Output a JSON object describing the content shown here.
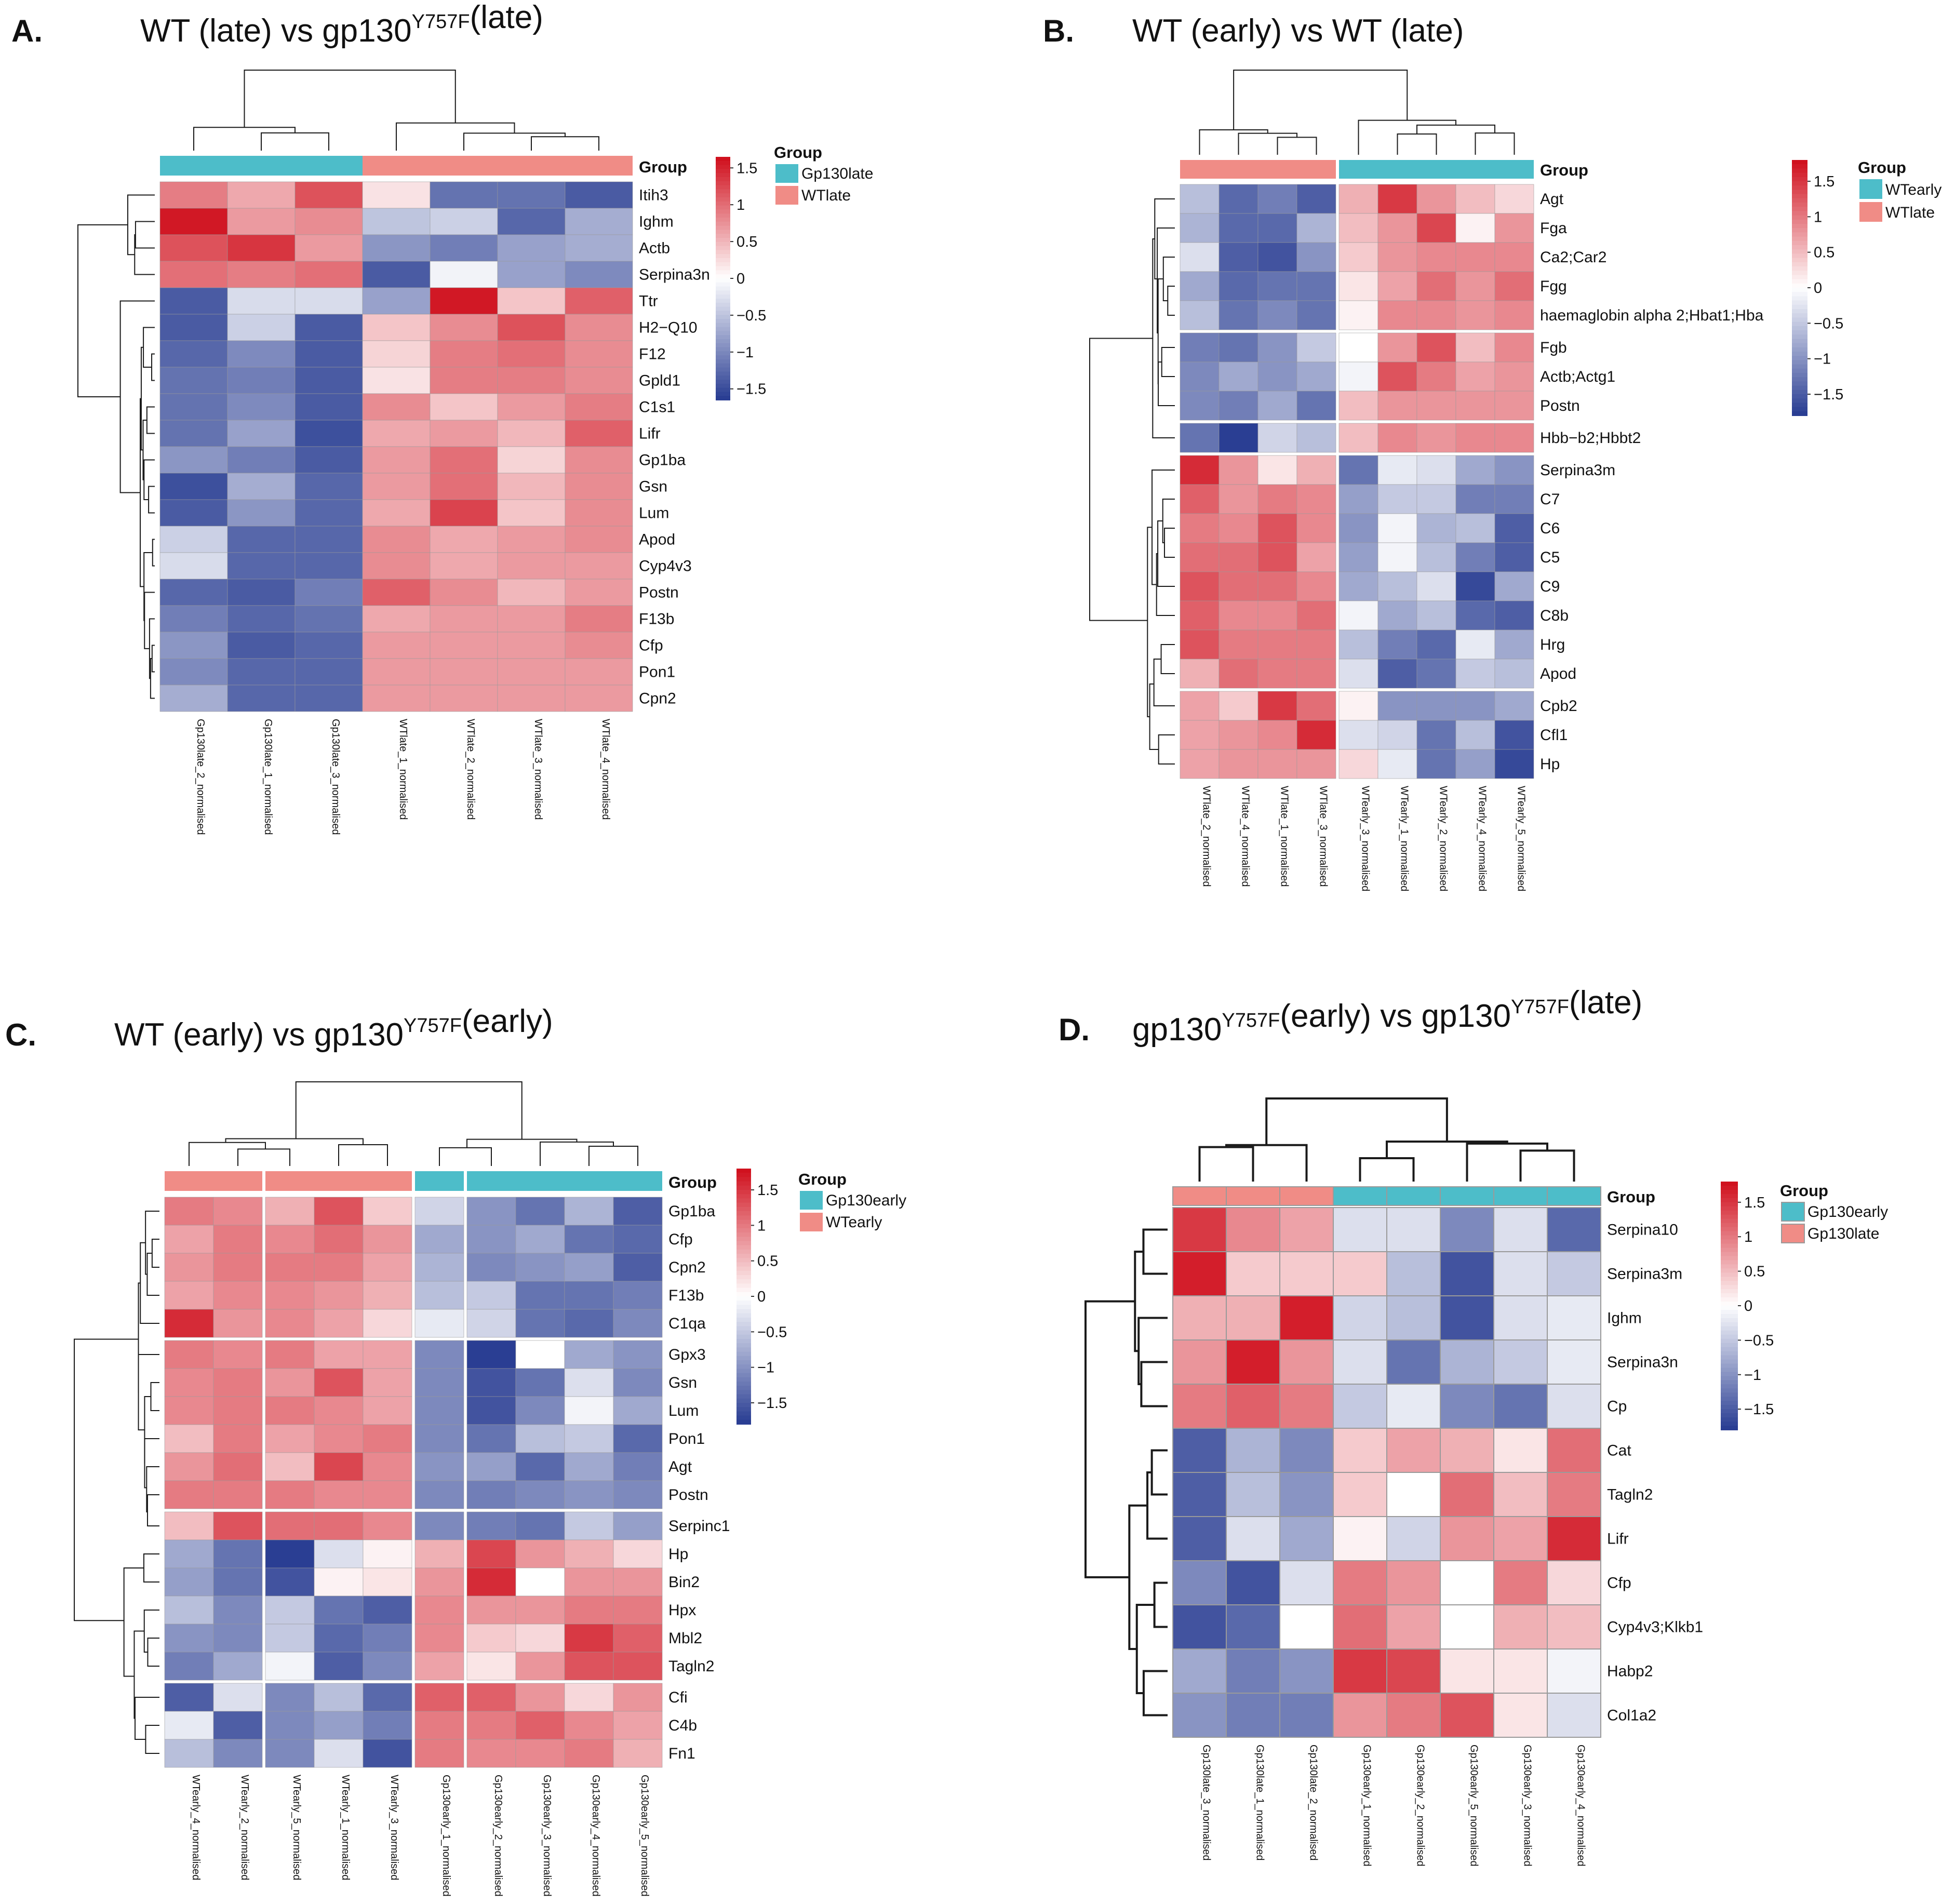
{
  "colors": {
    "gp130": "#4dbdc9",
    "wt": "#f08c86",
    "low": "#2a3e93",
    "mid": "#ffffff",
    "high": "#d0111e",
    "dendrogram": "#1a1a1a",
    "cell_border": "#9a9a9a"
  },
  "chart_data": [
    {
      "type": "heatmap",
      "panel": "A.",
      "title_prefix": "WT (late) vs ",
      "title_gene": "gp130",
      "title_sup": "Y757F",
      "title_suffix": "(late)",
      "annotation_label": "Group",
      "legend_title": "Group",
      "legend_entries": [
        {
          "label": "Gp130late",
          "color_key": "gp130"
        },
        {
          "label": "WTlate",
          "color_key": "wt"
        }
      ],
      "colorbar_ticks": [
        "1.5",
        "1",
        "0.5",
        "0",
        "−0.5",
        "−1",
        "−1.5"
      ],
      "colorbar_range": [
        -1.65,
        1.65
      ],
      "columns": [
        "Gp130late_2_normalised",
        "Gp130late_1_normalised",
        "Gp130late_3_normalised",
        "WTlate_1_normalised",
        "WTlate_2_normalised",
        "WTlate_3_normalised",
        "WTlate_4_normalised"
      ],
      "column_groups": [
        "gp130",
        "gp130",
        "gp130",
        "wt",
        "wt",
        "wt",
        "wt"
      ],
      "rows": [
        "Itih3",
        "Ighm",
        "Actb",
        "Serpina3n",
        "Ttr",
        "H2−Q10",
        "F12",
        "Gpld1",
        "C1s1",
        "Lifr",
        "Gp1ba",
        "Gsn",
        "Lum",
        "Apod",
        "Cyp4v3",
        "Postn",
        "F13b",
        "Cfp",
        "Pon1",
        "Cpn2"
      ],
      "values": [
        [
          0.9,
          0.6,
          1.2,
          0.2,
          -1.2,
          -1.2,
          -1.4
        ],
        [
          1.6,
          0.7,
          0.8,
          -0.5,
          -0.4,
          -1.3,
          -0.7
        ],
        [
          1.2,
          1.4,
          0.7,
          -0.9,
          -1.1,
          -0.8,
          -0.7
        ],
        [
          1.0,
          0.9,
          1.0,
          -1.4,
          -0.1,
          -0.8,
          -1.0
        ],
        [
          -1.4,
          -0.3,
          -0.3,
          -0.8,
          1.6,
          0.4,
          1.1
        ],
        [
          -1.4,
          -0.4,
          -1.4,
          0.4,
          0.8,
          1.2,
          0.8
        ],
        [
          -1.3,
          -1.0,
          -1.4,
          0.3,
          0.9,
          1.0,
          0.8
        ],
        [
          -1.2,
          -1.1,
          -1.4,
          0.2,
          0.9,
          0.9,
          0.8
        ],
        [
          -1.2,
          -1.0,
          -1.4,
          0.8,
          0.4,
          0.7,
          0.9
        ],
        [
          -1.2,
          -0.8,
          -1.5,
          0.6,
          0.7,
          0.5,
          1.1
        ],
        [
          -0.9,
          -1.1,
          -1.4,
          0.7,
          1.0,
          0.3,
          0.8
        ],
        [
          -1.5,
          -0.7,
          -1.3,
          0.7,
          1.0,
          0.5,
          0.8
        ],
        [
          -1.4,
          -0.9,
          -1.3,
          0.6,
          1.3,
          0.4,
          0.8
        ],
        [
          -0.4,
          -1.3,
          -1.3,
          0.8,
          0.6,
          0.7,
          0.8
        ],
        [
          -0.3,
          -1.3,
          -1.3,
          0.8,
          0.6,
          0.7,
          0.7
        ],
        [
          -1.3,
          -1.4,
          -1.1,
          1.1,
          0.8,
          0.5,
          0.7
        ],
        [
          -1.1,
          -1.3,
          -1.2,
          0.6,
          0.7,
          0.7,
          0.9
        ],
        [
          -0.9,
          -1.4,
          -1.3,
          0.7,
          0.7,
          0.7,
          0.8
        ],
        [
          -1.0,
          -1.3,
          -1.3,
          0.7,
          0.7,
          0.7,
          0.7
        ],
        [
          -0.7,
          -1.3,
          -1.3,
          0.7,
          0.7,
          0.7,
          0.7
        ]
      ],
      "row_gaps_after": [],
      "col_gaps_after": []
    },
    {
      "type": "heatmap",
      "panel": "B.",
      "title_prefix": "WT (early) vs WT (late)",
      "title_gene": "",
      "title_sup": "",
      "title_suffix": "",
      "annotation_label": "Group",
      "legend_title": "Group",
      "legend_entries": [
        {
          "label": "WTearly",
          "color_key": "gp130"
        },
        {
          "label": "WTlate",
          "color_key": "wt"
        }
      ],
      "colorbar_ticks": [
        "1.5",
        "1",
        "0.5",
        "0",
        "−0.5",
        "−1",
        "−1.5"
      ],
      "colorbar_range": [
        -1.8,
        1.8
      ],
      "columns": [
        "WTlate_2_normalised",
        "WTlate_4_normalised",
        "WTlate_1_normalised",
        "WTlate_3_normalised",
        "WTearly_3_normalised",
        "WTearly_1_normalised",
        "WTearly_2_normalised",
        "WTearly_4_normalised",
        "WTearly_5_normalised"
      ],
      "column_groups": [
        "wt",
        "wt",
        "wt",
        "wt",
        "gp130",
        "gp130",
        "gp130",
        "gp130",
        "gp130"
      ],
      "rows": [
        "Agt",
        "Fga",
        "Ca2;Car2",
        "Fgg",
        "haemaglobin alpha 2;Hbat1;Hba",
        "Fgb",
        "Actb;Actg1",
        "Postn",
        "Hbb−b2;Hbbt2",
        "Serpina3m",
        "C7",
        "C6",
        "C5",
        "C9",
        "C8b",
        "Hrg",
        "Apod",
        "Cpb2",
        "Cfl1",
        "Hp"
      ],
      "values": [
        [
          -0.6,
          -1.4,
          -1.2,
          -1.5,
          0.6,
          1.5,
          0.8,
          0.5,
          0.3
        ],
        [
          -0.7,
          -1.4,
          -1.4,
          -0.7,
          0.5,
          0.8,
          1.4,
          0.1,
          0.8
        ],
        [
          -0.3,
          -1.5,
          -1.6,
          -1.0,
          0.4,
          0.8,
          0.9,
          0.9,
          0.9
        ],
        [
          -0.8,
          -1.4,
          -1.3,
          -1.3,
          0.2,
          0.7,
          1.1,
          0.8,
          1.1
        ],
        [
          -0.6,
          -1.3,
          -1.1,
          -1.3,
          0.1,
          0.9,
          0.9,
          0.8,
          0.9
        ],
        [
          -1.2,
          -1.3,
          -1.0,
          -0.5,
          0.0,
          0.8,
          1.3,
          0.5,
          0.9
        ],
        [
          -1.1,
          -0.8,
          -1.0,
          -0.8,
          -0.1,
          1.3,
          1.0,
          0.7,
          0.8
        ],
        [
          -1.1,
          -1.2,
          -0.8,
          -1.3,
          0.5,
          0.8,
          0.8,
          0.8,
          0.8
        ],
        [
          -1.3,
          -1.9,
          -0.4,
          -0.6,
          0.5,
          0.9,
          0.8,
          0.9,
          0.9
        ],
        [
          1.6,
          0.8,
          0.2,
          0.6,
          -1.3,
          -0.2,
          -0.3,
          -0.8,
          -1.0
        ],
        [
          1.2,
          0.8,
          1.0,
          0.9,
          -0.9,
          -0.5,
          -0.5,
          -1.2,
          -1.2
        ],
        [
          1.0,
          0.9,
          1.3,
          0.9,
          -1.0,
          -0.1,
          -0.7,
          -0.6,
          -1.5
        ],
        [
          1.1,
          1.1,
          1.3,
          0.7,
          -0.9,
          -0.1,
          -0.6,
          -1.2,
          -1.5
        ],
        [
          1.3,
          1.1,
          1.1,
          0.9,
          -0.8,
          -0.6,
          -0.3,
          -1.7,
          -0.8
        ],
        [
          1.2,
          0.9,
          0.9,
          1.1,
          -0.1,
          -0.8,
          -0.6,
          -1.4,
          -1.5
        ],
        [
          1.3,
          1.0,
          1.0,
          1.0,
          -0.6,
          -1.2,
          -1.4,
          -0.2,
          -0.8
        ],
        [
          0.6,
          1.1,
          1.0,
          1.0,
          -0.3,
          -1.5,
          -1.3,
          -0.5,
          -0.6
        ],
        [
          0.7,
          0.4,
          1.5,
          1.1,
          0.1,
          -1.0,
          -1.0,
          -1.0,
          -0.8
        ],
        [
          0.7,
          0.8,
          0.9,
          1.6,
          -0.3,
          -0.4,
          -1.3,
          -0.6,
          -1.6
        ],
        [
          0.7,
          0.8,
          0.8,
          0.8,
          0.3,
          -0.2,
          -1.3,
          -0.9,
          -1.7
        ]
      ],
      "row_gaps_after": [
        4,
        7,
        8,
        16
      ],
      "col_gaps_after": [
        3
      ]
    },
    {
      "type": "heatmap",
      "panel": "C.",
      "title_prefix": "WT (early) vs ",
      "title_gene": "gp130",
      "title_sup": "Y757F",
      "title_suffix": "(early)",
      "annotation_label": "Group",
      "legend_title": "Group",
      "legend_entries": [
        {
          "label": "Gp130early",
          "color_key": "gp130"
        },
        {
          "label": "WTearly",
          "color_key": "wt"
        }
      ],
      "colorbar_ticks": [
        "1.5",
        "1",
        "0.5",
        "0",
        "−0.5",
        "−1",
        "−1.5"
      ],
      "colorbar_range": [
        -1.8,
        1.8
      ],
      "columns": [
        "WTearly_4_normalised",
        "WTearly_2_normalised",
        "WTearly_5_normalised",
        "WTearly_1_normalised",
        "WTearly_3_normalised",
        "Gp130early_1_normalised",
        "Gp130early_2_normalised",
        "Gp130early_3_normalised",
        "Gp130early_4_normalised",
        "Gp130early_5_normalised"
      ],
      "column_groups": [
        "wt",
        "wt",
        "wt",
        "wt",
        "wt",
        "gp130",
        "gp130",
        "gp130",
        "gp130",
        "gp130"
      ],
      "rows": [
        "Gp1ba",
        "Cfp",
        "Cpn2",
        "F13b",
        "C1qa",
        "Gpx3",
        "Gsn",
        "Lum",
        "Pon1",
        "Agt",
        "Postn",
        "Serpinc1",
        "Hp",
        "Bin2",
        "Hpx",
        "Mbl2",
        "Tagln2",
        "Cfi",
        "C4b",
        "Fn1"
      ],
      "values": [
        [
          1.0,
          0.9,
          0.6,
          1.3,
          0.4,
          -0.4,
          -1.0,
          -1.3,
          -0.7,
          -1.5
        ],
        [
          0.7,
          1.0,
          0.9,
          1.1,
          0.8,
          -0.8,
          -1.0,
          -0.8,
          -1.3,
          -1.4
        ],
        [
          0.8,
          1.0,
          1.0,
          1.0,
          0.7,
          -0.7,
          -1.1,
          -1.0,
          -0.9,
          -1.5
        ],
        [
          0.7,
          0.9,
          0.9,
          0.8,
          0.6,
          -0.6,
          -0.5,
          -1.3,
          -1.3,
          -1.2
        ],
        [
          1.6,
          0.8,
          0.9,
          0.7,
          0.3,
          -0.2,
          -0.4,
          -1.3,
          -1.4,
          -1.1
        ],
        [
          1.0,
          0.9,
          1.0,
          0.7,
          0.7,
          -1.1,
          -1.8,
          0.0,
          -0.8,
          -1.0
        ],
        [
          0.9,
          1.0,
          0.8,
          1.3,
          0.7,
          -1.1,
          -1.6,
          -1.3,
          -0.3,
          -1.1
        ],
        [
          0.9,
          1.0,
          1.0,
          0.9,
          0.7,
          -1.1,
          -1.6,
          -1.1,
          -0.1,
          -0.8
        ],
        [
          0.5,
          1.0,
          0.7,
          0.9,
          1.0,
          -1.1,
          -1.3,
          -0.6,
          -0.5,
          -1.4
        ],
        [
          0.8,
          1.1,
          0.5,
          1.4,
          0.9,
          -1.0,
          -0.9,
          -1.4,
          -0.8,
          -1.2
        ],
        [
          1.0,
          1.0,
          1.0,
          0.9,
          0.9,
          -1.1,
          -1.2,
          -1.1,
          -1.0,
          -1.1
        ],
        [
          0.5,
          1.3,
          1.1,
          1.1,
          0.9,
          -1.1,
          -1.2,
          -1.3,
          -0.5,
          -0.9
        ],
        [
          -0.8,
          -1.3,
          -1.8,
          -0.3,
          0.1,
          0.6,
          1.4,
          0.8,
          0.6,
          0.3
        ],
        [
          -0.9,
          -1.3,
          -1.6,
          0.1,
          0.2,
          0.8,
          1.6,
          0.0,
          0.8,
          0.8
        ],
        [
          -0.6,
          -1.1,
          -0.5,
          -1.3,
          -1.5,
          0.9,
          0.8,
          0.8,
          1.0,
          1.0
        ],
        [
          -1.0,
          -1.1,
          -0.5,
          -1.4,
          -1.2,
          0.9,
          0.4,
          0.3,
          1.5,
          1.2
        ],
        [
          -1.2,
          -0.8,
          -0.1,
          -1.5,
          -1.1,
          0.7,
          0.2,
          0.8,
          1.3,
          1.3
        ],
        [
          -1.5,
          -0.3,
          -1.1,
          -0.6,
          -1.4,
          1.2,
          1.2,
          0.8,
          0.3,
          0.8
        ],
        [
          -0.2,
          -1.5,
          -1.1,
          -0.9,
          -1.2,
          1.0,
          1.0,
          1.2,
          0.9,
          0.7
        ],
        [
          -0.6,
          -1.1,
          -1.1,
          -0.3,
          -1.6,
          1.0,
          0.9,
          0.9,
          1.0,
          0.6
        ]
      ],
      "row_gaps_after": [
        4,
        10,
        16
      ],
      "col_gaps_after": [
        1,
        4,
        5
      ]
    },
    {
      "type": "heatmap",
      "panel": "D.",
      "title_prefix": "",
      "title_gene": "gp130",
      "title_sup": "Y757F",
      "title_suffix": "(early) vs ",
      "title_gene2": "gp130",
      "title_sup2": "Y757F",
      "title_suffix2": "(late)",
      "annotation_label": "Group",
      "legend_title": "Group",
      "legend_entries": [
        {
          "label": "Gp130early",
          "color_key": "gp130"
        },
        {
          "label": "Gp130late",
          "color_key": "wt"
        }
      ],
      "colorbar_ticks": [
        "1.5",
        "1",
        "0.5",
        "0",
        "−0.5",
        "−1",
        "−1.5"
      ],
      "colorbar_range": [
        -1.8,
        1.8
      ],
      "columns": [
        "Gp130late_3_normalised",
        "Gp130late_1_normalised",
        "Gp130late_2_normalised",
        "Gp130early_1_normalised",
        "Gp130early_2_normalised",
        "Gp130early_5_normalised",
        "Gp130early_3_normalised",
        "Gp130early_4_normalised"
      ],
      "column_groups": [
        "wt",
        "wt",
        "wt",
        "gp130",
        "gp130",
        "gp130",
        "gp130",
        "gp130"
      ],
      "rows": [
        "Serpina10",
        "Serpina3m",
        "Ighm",
        "Serpina3n",
        "Cp",
        "Cat",
        "Tagln2",
        "Lifr",
        "Cfp",
        "Cyp4v3;Klkb1",
        "Habp2",
        "Col1a2"
      ],
      "values": [
        [
          1.5,
          0.9,
          0.7,
          -0.3,
          -0.3,
          -1.1,
          -0.3,
          -1.4
        ],
        [
          1.7,
          0.4,
          0.4,
          0.4,
          -0.6,
          -1.6,
          -0.3,
          -0.5
        ],
        [
          0.6,
          0.6,
          1.7,
          -0.4,
          -0.6,
          -1.6,
          -0.3,
          -0.2
        ],
        [
          0.8,
          1.7,
          0.8,
          -0.3,
          -1.3,
          -0.7,
          -0.5,
          -0.2
        ],
        [
          1.0,
          1.2,
          1.0,
          -0.5,
          -0.2,
          -1.1,
          -1.3,
          -0.3
        ],
        [
          -1.5,
          -0.7,
          -1.1,
          0.4,
          0.7,
          0.6,
          0.2,
          1.1
        ],
        [
          -1.5,
          -0.6,
          -1.0,
          0.4,
          0.0,
          1.1,
          0.5,
          1.0
        ],
        [
          -1.5,
          -0.3,
          -0.8,
          0.1,
          -0.4,
          0.8,
          0.7,
          1.6
        ],
        [
          -1.1,
          -1.6,
          -0.3,
          1.0,
          0.8,
          0.0,
          1.0,
          0.3
        ],
        [
          -1.6,
          -1.4,
          0.0,
          1.1,
          0.7,
          0.0,
          0.6,
          0.5
        ],
        [
          -0.8,
          -1.2,
          -1.0,
          1.5,
          1.4,
          0.2,
          0.2,
          -0.1
        ],
        [
          -1.0,
          -1.2,
          -1.2,
          0.8,
          1.0,
          1.3,
          0.2,
          -0.3
        ]
      ],
      "row_gaps_after": [],
      "col_gaps_after": []
    }
  ]
}
